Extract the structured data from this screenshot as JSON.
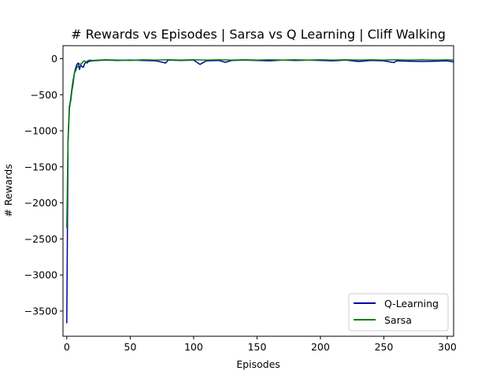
{
  "chart_data": {
    "type": "line",
    "title": "# Rewards vs Episodes | Sarsa vs Q Learning | Cliff Walking",
    "xlabel": "Episodes",
    "ylabel": "# Rewards",
    "xlim": [
      -3,
      305
    ],
    "ylim": [
      -3850,
      180
    ],
    "xticks": [
      0,
      50,
      100,
      150,
      200,
      250,
      300
    ],
    "yticks": [
      0,
      -500,
      -1000,
      -1500,
      -2000,
      -2500,
      -3000,
      -3500
    ],
    "xtick_labels": [
      "0",
      "50",
      "100",
      "150",
      "200",
      "250",
      "300"
    ],
    "ytick_labels": [
      "0",
      "−500",
      "−1000",
      "−1500",
      "−2000",
      "−2500",
      "−3000",
      "−3500"
    ],
    "grid": false,
    "legend_position": "lower-right",
    "series": [
      {
        "name": "Q-Learning",
        "color": "#0000a8",
        "points": [
          [
            0,
            -3670
          ],
          [
            1,
            -1150
          ],
          [
            2,
            -700
          ],
          [
            3,
            -560
          ],
          [
            4,
            -420
          ],
          [
            5,
            -300
          ],
          [
            6,
            -200
          ],
          [
            7,
            -130
          ],
          [
            8,
            -80
          ],
          [
            9,
            -60
          ],
          [
            10,
            -150
          ],
          [
            11,
            -90
          ],
          [
            12,
            -110
          ],
          [
            13,
            -120
          ],
          [
            14,
            -70
          ],
          [
            15,
            -50
          ],
          [
            16,
            -60
          ],
          [
            17,
            -40
          ],
          [
            18,
            -35
          ],
          [
            20,
            -30
          ],
          [
            25,
            -25
          ],
          [
            30,
            -20
          ],
          [
            40,
            -25
          ],
          [
            50,
            -20
          ],
          [
            60,
            -25
          ],
          [
            70,
            -30
          ],
          [
            78,
            -60
          ],
          [
            80,
            -20
          ],
          [
            90,
            -25
          ],
          [
            100,
            -20
          ],
          [
            105,
            -80
          ],
          [
            110,
            -30
          ],
          [
            120,
            -25
          ],
          [
            125,
            -50
          ],
          [
            130,
            -25
          ],
          [
            140,
            -20
          ],
          [
            150,
            -25
          ],
          [
            160,
            -30
          ],
          [
            170,
            -20
          ],
          [
            180,
            -25
          ],
          [
            190,
            -20
          ],
          [
            200,
            -25
          ],
          [
            210,
            -30
          ],
          [
            220,
            -20
          ],
          [
            230,
            -40
          ],
          [
            240,
            -25
          ],
          [
            250,
            -30
          ],
          [
            258,
            -55
          ],
          [
            260,
            -30
          ],
          [
            270,
            -35
          ],
          [
            280,
            -40
          ],
          [
            290,
            -35
          ],
          [
            300,
            -30
          ],
          [
            305,
            -45
          ]
        ]
      },
      {
        "name": "Sarsa",
        "color": "#008000",
        "points": [
          [
            0,
            -2350
          ],
          [
            1,
            -1100
          ],
          [
            2,
            -650
          ],
          [
            3,
            -600
          ],
          [
            4,
            -450
          ],
          [
            5,
            -350
          ],
          [
            6,
            -200
          ],
          [
            7,
            -170
          ],
          [
            8,
            -120
          ],
          [
            9,
            -100
          ],
          [
            10,
            -70
          ],
          [
            11,
            -80
          ],
          [
            12,
            -60
          ],
          [
            13,
            -40
          ],
          [
            14,
            -30
          ],
          [
            15,
            -50
          ],
          [
            16,
            -35
          ],
          [
            17,
            -25
          ],
          [
            18,
            -20
          ],
          [
            20,
            -25
          ],
          [
            25,
            -20
          ],
          [
            30,
            -15
          ],
          [
            40,
            -20
          ],
          [
            50,
            -25
          ],
          [
            60,
            -15
          ],
          [
            70,
            -20
          ],
          [
            80,
            -15
          ],
          [
            90,
            -20
          ],
          [
            100,
            -15
          ],
          [
            110,
            -20
          ],
          [
            120,
            -15
          ],
          [
            130,
            -20
          ],
          [
            140,
            -15
          ],
          [
            150,
            -20
          ],
          [
            160,
            -15
          ],
          [
            170,
            -20
          ],
          [
            180,
            -15
          ],
          [
            190,
            -20
          ],
          [
            200,
            -15
          ],
          [
            210,
            -20
          ],
          [
            220,
            -15
          ],
          [
            230,
            -20
          ],
          [
            240,
            -15
          ],
          [
            250,
            -20
          ],
          [
            260,
            -15
          ],
          [
            270,
            -20
          ],
          [
            280,
            -15
          ],
          [
            290,
            -20
          ],
          [
            300,
            -15
          ],
          [
            305,
            -20
          ]
        ]
      }
    ]
  }
}
